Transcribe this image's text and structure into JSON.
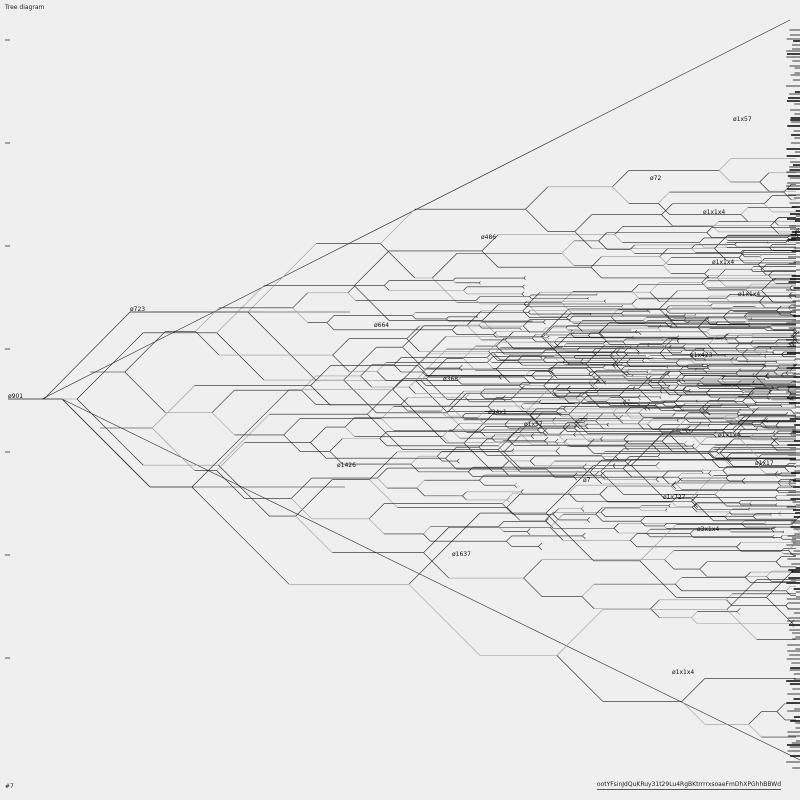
{
  "title": "Tree diagram",
  "footer_left": "#7",
  "footer_right": "ootYFsinJdQuKRuy31t29Lu4RgBKtrrrrxsoaeFmDhXPGhhBBWd",
  "colors": {
    "background": "#efefef",
    "edge": "#222222",
    "edge_light": "#9a9a9a"
  },
  "nodes": [
    {
      "id": "root",
      "label": "ø901"
    },
    {
      "id": "n1",
      "label": "ø723"
    },
    {
      "id": "n2",
      "label": "ø486"
    },
    {
      "id": "n3",
      "label": "ø664"
    },
    {
      "id": "n4",
      "label": "ø368"
    },
    {
      "id": "n5",
      "label": "ø1637"
    },
    {
      "id": "n6",
      "label": "ø1426"
    },
    {
      "id": "n7",
      "label": "ø34x1"
    },
    {
      "id": "n8",
      "label": "ø1x57"
    },
    {
      "id": "n9",
      "label": "ø72"
    },
    {
      "id": "n10",
      "label": "ø7"
    },
    {
      "id": "n11",
      "label": "ø1x57"
    },
    {
      "id": "n12",
      "label": "ø1x1x4"
    },
    {
      "id": "n13",
      "label": "ø1x1x4"
    },
    {
      "id": "n14",
      "label": "ø1x423"
    },
    {
      "id": "n15",
      "label": "ø1x1x4"
    },
    {
      "id": "n16",
      "label": "ø1x17"
    },
    {
      "id": "n17",
      "label": "ø1x727"
    },
    {
      "id": "n18",
      "label": "ø3x1x4"
    },
    {
      "id": "n19",
      "label": "ø1x1x4"
    },
    {
      "id": "n20",
      "label": "ø1x1x4"
    }
  ]
}
